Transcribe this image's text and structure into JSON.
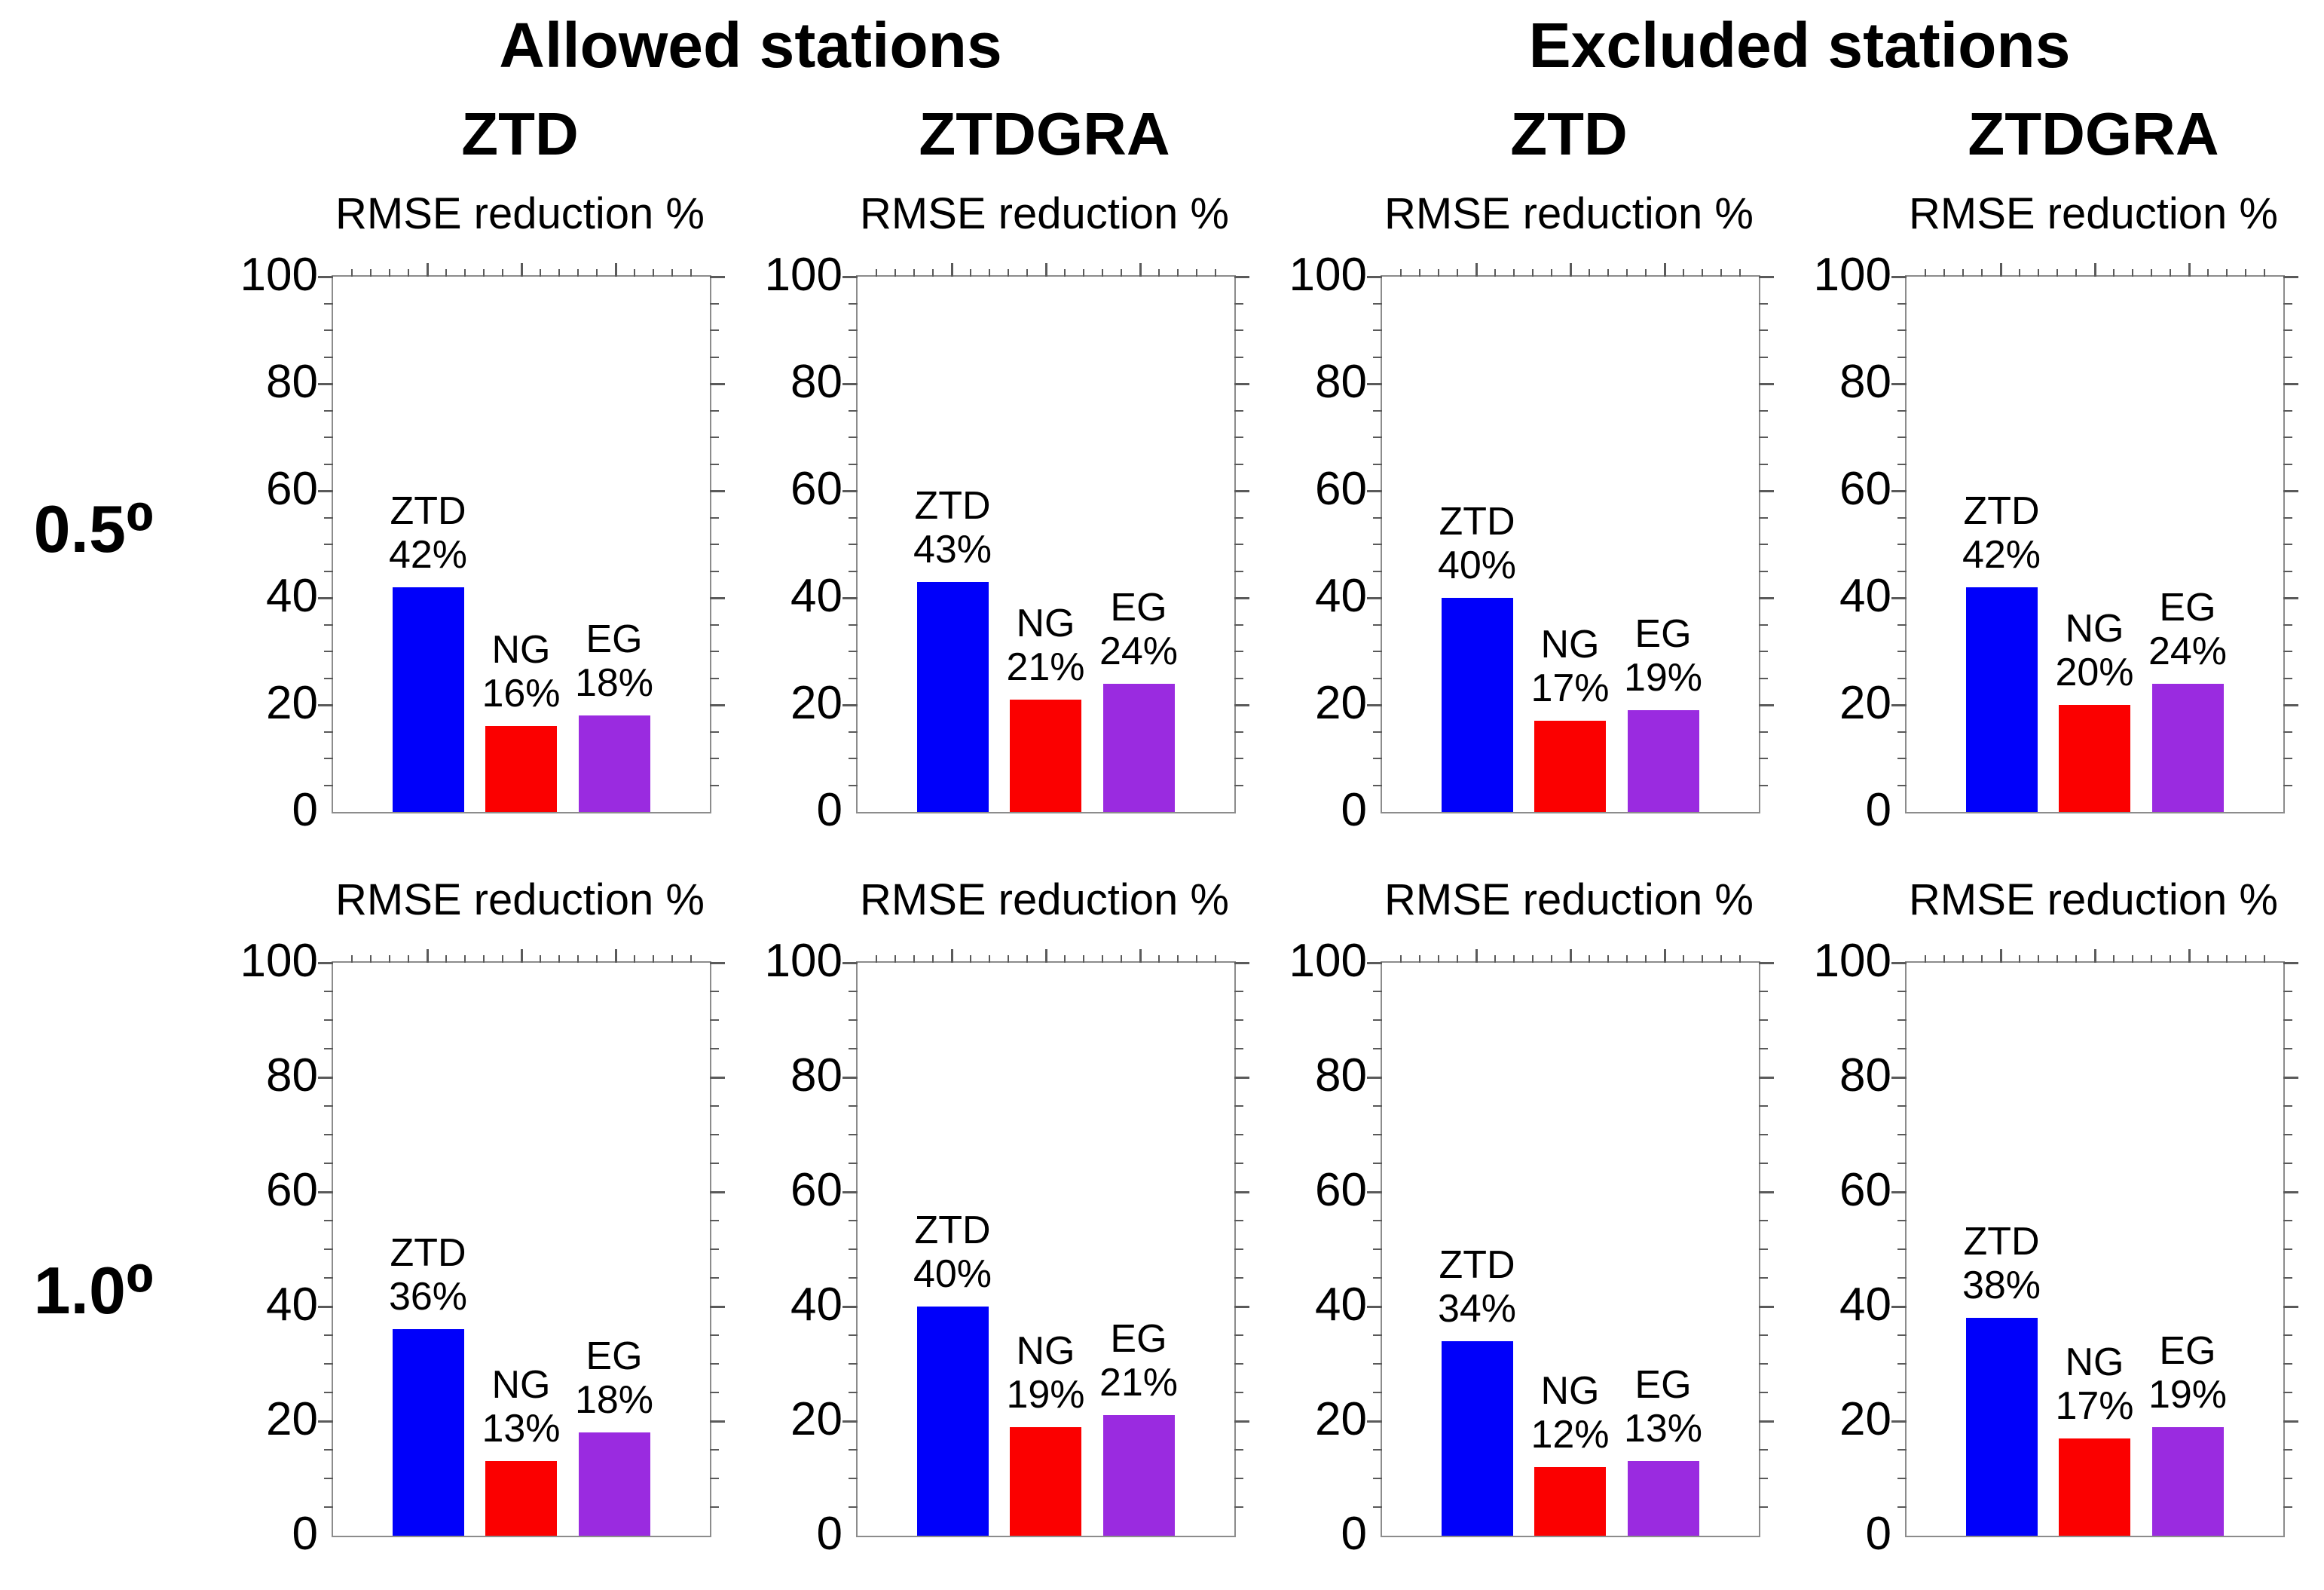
{
  "figure": {
    "background": "#ffffff",
    "group_headers": [
      {
        "label": "Allowed stations"
      },
      {
        "label": "Excluded stations"
      }
    ],
    "column_headers": [
      "ZTD",
      "ZTDGRA",
      "ZTD",
      "ZTDGRA"
    ],
    "row_labels": [
      "0.5⁰",
      "1.0⁰"
    ],
    "axis_title": "RMSE reduction %",
    "colors": {
      "ztd_bar": "#0000fa",
      "ng_bar": "#fb0000",
      "eg_bar": "#9a2be0",
      "frame": "#8c8c8c",
      "tick": "#5a5a5a",
      "text": "#000000"
    }
  },
  "chart_data": [
    {
      "type": "bar",
      "row": "0.5⁰",
      "group": "Allowed stations",
      "column": "ZTD",
      "title": "RMSE reduction %",
      "ylim": [
        0,
        100
      ],
      "yticks": [
        0,
        20,
        40,
        60,
        80,
        100
      ],
      "categories": [
        "ZTD",
        "NG",
        "EG"
      ],
      "values": [
        42,
        16,
        18
      ],
      "value_labels": [
        "42%",
        "16%",
        "18%"
      ],
      "bar_colors": [
        "#0000fa",
        "#fb0000",
        "#9a2be0"
      ]
    },
    {
      "type": "bar",
      "row": "0.5⁰",
      "group": "Allowed stations",
      "column": "ZTDGRA",
      "title": "RMSE reduction %",
      "ylim": [
        0,
        100
      ],
      "yticks": [
        0,
        20,
        40,
        60,
        80,
        100
      ],
      "categories": [
        "ZTD",
        "NG",
        "EG"
      ],
      "values": [
        43,
        21,
        24
      ],
      "value_labels": [
        "43%",
        "21%",
        "24%"
      ],
      "bar_colors": [
        "#0000fa",
        "#fb0000",
        "#9a2be0"
      ]
    },
    {
      "type": "bar",
      "row": "0.5⁰",
      "group": "Excluded stations",
      "column": "ZTD",
      "title": "RMSE reduction %",
      "ylim": [
        0,
        100
      ],
      "yticks": [
        0,
        20,
        40,
        60,
        80,
        100
      ],
      "categories": [
        "ZTD",
        "NG",
        "EG"
      ],
      "values": [
        40,
        17,
        19
      ],
      "value_labels": [
        "40%",
        "17%",
        "19%"
      ],
      "bar_colors": [
        "#0000fa",
        "#fb0000",
        "#9a2be0"
      ]
    },
    {
      "type": "bar",
      "row": "0.5⁰",
      "group": "Excluded stations",
      "column": "ZTDGRA",
      "title": "RMSE reduction %",
      "ylim": [
        0,
        100
      ],
      "yticks": [
        0,
        20,
        40,
        60,
        80,
        100
      ],
      "categories": [
        "ZTD",
        "NG",
        "EG"
      ],
      "values": [
        42,
        20,
        24
      ],
      "value_labels": [
        "42%",
        "20%",
        "24%"
      ],
      "bar_colors": [
        "#0000fa",
        "#fb0000",
        "#9a2be0"
      ]
    },
    {
      "type": "bar",
      "row": "1.0⁰",
      "group": "Allowed stations",
      "column": "ZTD",
      "title": "RMSE reduction %",
      "ylim": [
        0,
        100
      ],
      "yticks": [
        0,
        20,
        40,
        60,
        80,
        100
      ],
      "categories": [
        "ZTD",
        "NG",
        "EG"
      ],
      "values": [
        36,
        13,
        18
      ],
      "value_labels": [
        "36%",
        "13%",
        "18%"
      ],
      "bar_colors": [
        "#0000fa",
        "#fb0000",
        "#9a2be0"
      ]
    },
    {
      "type": "bar",
      "row": "1.0⁰",
      "group": "Allowed stations",
      "column": "ZTDGRA",
      "title": "RMSE reduction %",
      "ylim": [
        0,
        100
      ],
      "yticks": [
        0,
        20,
        40,
        60,
        80,
        100
      ],
      "categories": [
        "ZTD",
        "NG",
        "EG"
      ],
      "values": [
        40,
        19,
        21
      ],
      "value_labels": [
        "40%",
        "19%",
        "21%"
      ],
      "bar_colors": [
        "#0000fa",
        "#fb0000",
        "#9a2be0"
      ]
    },
    {
      "type": "bar",
      "row": "1.0⁰",
      "group": "Excluded stations",
      "column": "ZTD",
      "title": "RMSE reduction %",
      "ylim": [
        0,
        100
      ],
      "yticks": [
        0,
        20,
        40,
        60,
        80,
        100
      ],
      "categories": [
        "ZTD",
        "NG",
        "EG"
      ],
      "values": [
        34,
        12,
        13
      ],
      "value_labels": [
        "34%",
        "12%",
        "13%"
      ],
      "bar_colors": [
        "#0000fa",
        "#fb0000",
        "#9a2be0"
      ]
    },
    {
      "type": "bar",
      "row": "1.0⁰",
      "group": "Excluded stations",
      "column": "ZTDGRA",
      "title": "RMSE reduction %",
      "ylim": [
        0,
        100
      ],
      "yticks": [
        0,
        20,
        40,
        60,
        80,
        100
      ],
      "categories": [
        "ZTD",
        "NG",
        "EG"
      ],
      "values": [
        38,
        17,
        19
      ],
      "value_labels": [
        "38%",
        "17%",
        "19%"
      ],
      "bar_colors": [
        "#0000fa",
        "#fb0000",
        "#9a2be0"
      ]
    }
  ]
}
